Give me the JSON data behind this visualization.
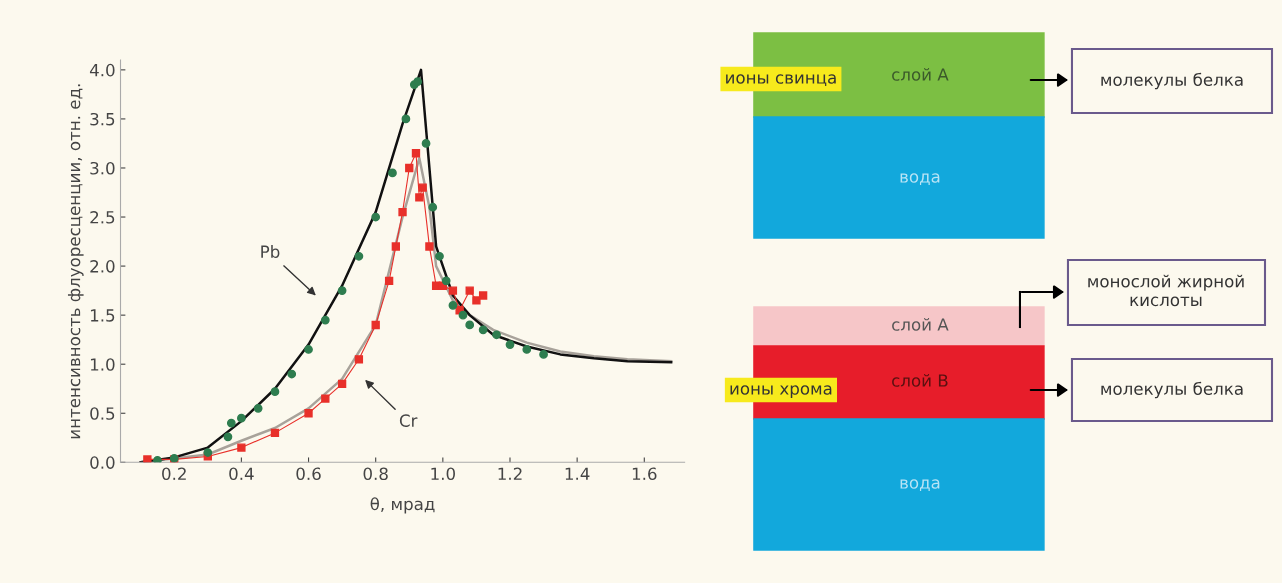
{
  "chart_data": [
    {
      "type": "scatter",
      "xlabel": "θ, мрад",
      "ylabel": "интенсивность флуоресценции, отн. ед.",
      "xlim": [
        0.04,
        1.72
      ],
      "ylim": [
        0,
        4.1
      ],
      "xticks": [
        0.2,
        0.4,
        0.6,
        0.8,
        {
          "value": 1.0,
          "label": "1.0"
        },
        1.2,
        1.4,
        1.6
      ],
      "yticks": [
        {
          "value": 0,
          "label": "0.0"
        },
        0.5,
        {
          "value": 1,
          "label": "1.0"
        },
        1.5,
        {
          "value": 2,
          "label": "2.0"
        },
        2.5,
        {
          "value": 3,
          "label": "3.0"
        },
        3.5,
        {
          "value": 4,
          "label": "4.0"
        }
      ],
      "grid": false,
      "series": [
        {
          "type": "line",
          "color": "#a8a29a",
          "x": [
            0.1,
            0.3,
            0.4,
            0.5,
            0.6,
            0.7,
            0.8,
            0.88,
            0.93,
            0.96,
            0.98,
            1.03,
            1.08,
            1.15,
            1.25,
            1.35,
            1.45,
            1.55,
            1.68
          ],
          "values": [
            0,
            0.08,
            0.22,
            0.35,
            0.55,
            0.85,
            1.4,
            2.5,
            3.1,
            2.6,
            2.0,
            1.65,
            1.5,
            1.35,
            1.22,
            1.13,
            1.08,
            1.05,
            1.03
          ]
        },
        {
          "type": "line",
          "color": "#111111",
          "x": [
            0.1,
            0.2,
            0.3,
            0.4,
            0.5,
            0.6,
            0.7,
            0.8,
            0.88,
            0.935,
            0.955,
            0.98,
            1.03,
            1.08,
            1.15,
            1.25,
            1.35,
            1.45,
            1.55,
            1.68
          ],
          "values": [
            0,
            0.05,
            0.15,
            0.42,
            0.75,
            1.2,
            1.8,
            2.55,
            3.45,
            4.0,
            3.2,
            2.2,
            1.7,
            1.5,
            1.3,
            1.18,
            1.1,
            1.06,
            1.03,
            1.02
          ]
        },
        {
          "type": "line",
          "marker": "square",
          "color": "#e8302a",
          "x": [
            0.12,
            0.2,
            0.3,
            0.4,
            0.5,
            0.6,
            0.65,
            0.7,
            0.75,
            0.8,
            0.84,
            0.86,
            0.88,
            0.9,
            0.92,
            0.93,
            0.94,
            0.96,
            0.98,
            1.0,
            1.03,
            1.05,
            1.08,
            1.1,
            1.12
          ],
          "values": [
            0.03,
            0.03,
            0.06,
            0.15,
            0.3,
            0.5,
            0.65,
            0.8,
            1.05,
            1.4,
            1.85,
            2.2,
            2.55,
            3.0,
            3.15,
            2.7,
            2.8,
            2.2,
            1.8,
            1.8,
            1.75,
            1.55,
            1.75,
            1.65,
            1.7
          ]
        },
        {
          "type": "scatter",
          "marker": "circle",
          "color": "#2e7d4f",
          "x": [
            0.15,
            0.2,
            0.3,
            0.36,
            0.37,
            0.4,
            0.45,
            0.5,
            0.55,
            0.6,
            0.65,
            0.7,
            0.75,
            0.8,
            0.85,
            0.89,
            0.915,
            0.925,
            0.95,
            0.97,
            0.99,
            1.01,
            1.03,
            1.06,
            1.08,
            1.12,
            1.16,
            1.2,
            1.25,
            1.3
          ],
          "values": [
            0.02,
            0.04,
            0.1,
            0.26,
            0.4,
            0.45,
            0.55,
            0.72,
            0.9,
            1.15,
            1.45,
            1.75,
            2.1,
            2.5,
            2.95,
            3.5,
            3.85,
            3.88,
            3.25,
            2.6,
            2.1,
            1.85,
            1.6,
            1.5,
            1.4,
            1.35,
            1.3,
            1.2,
            1.15,
            1.1
          ]
        }
      ],
      "annotations": [
        "Pb",
        "Cr"
      ]
    },
    {
      "type": "other",
      "annotations": [
        "слой А",
        "вода",
        "ионы свинца",
        "молекулы белка",
        "слой А",
        "слой В",
        "вода",
        "ионы хрома",
        "монослой жирной кислоты",
        "молекулы белка"
      ]
    }
  ]
}
